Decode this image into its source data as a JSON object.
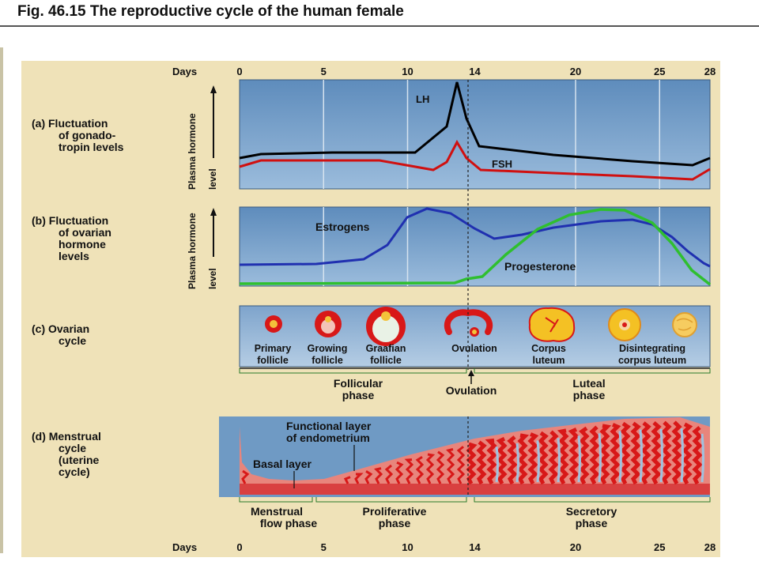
{
  "title": "Fig. 46.15  The reproductive cycle of the human female",
  "days_label": "Days",
  "day_ticks": [
    "0",
    "5",
    "10",
    "14",
    "20",
    "25",
    "28"
  ],
  "panel_a": {
    "label": [
      "(a) Fluctuation",
      "of gonado-",
      "tropin levels"
    ],
    "y_label": [
      "Plasma hormone",
      "level"
    ],
    "series": [
      {
        "name": "LH",
        "color": "#000000"
      },
      {
        "name": "FSH",
        "color": "#d01010"
      }
    ]
  },
  "panel_b": {
    "label": [
      "(b) Fluctuation",
      "of ovarian",
      "hormone",
      "levels"
    ],
    "y_label": [
      "Plasma hormone",
      "level"
    ],
    "series": [
      {
        "name": "Estrogens",
        "color": "#2030b0"
      },
      {
        "name": "Progesterone",
        "color": "#2fbf2f"
      }
    ]
  },
  "panel_c": {
    "label": [
      "(c) Ovarian",
      "cycle"
    ],
    "stages": [
      {
        "label": [
          "Primary",
          "follicle"
        ]
      },
      {
        "label": [
          "Growing",
          "follicle"
        ]
      },
      {
        "label": [
          "Graafian",
          "follicle"
        ]
      },
      {
        "label": [
          "Ovulation"
        ]
      },
      {
        "label": [
          "Corpus",
          "luteum"
        ]
      },
      {
        "label": [
          "Disintegrating",
          "corpus luteum"
        ]
      }
    ],
    "phases": [
      {
        "label": [
          "Follicular",
          "phase"
        ]
      },
      {
        "label": [
          "Ovulation"
        ]
      },
      {
        "label": [
          "Luteal",
          "phase"
        ]
      }
    ]
  },
  "panel_d": {
    "label": [
      "(d) Menstrual",
      "cycle",
      "(uterine",
      "cycle)"
    ],
    "annotations": {
      "functional_layer": [
        "Functional layer",
        "of endometrium"
      ],
      "basal_layer": "Basal layer"
    },
    "phases": [
      {
        "label": [
          "Menstrual",
          "flow phase"
        ]
      },
      {
        "label": [
          "Proliferative",
          "phase"
        ]
      },
      {
        "label": [
          "Secretory",
          "phase"
        ]
      }
    ]
  },
  "colors": {
    "background": "#efe2b8",
    "panel_blue": "#6f9ac4",
    "endometrium": "#e8857c",
    "vessel_red": "#d81818"
  }
}
